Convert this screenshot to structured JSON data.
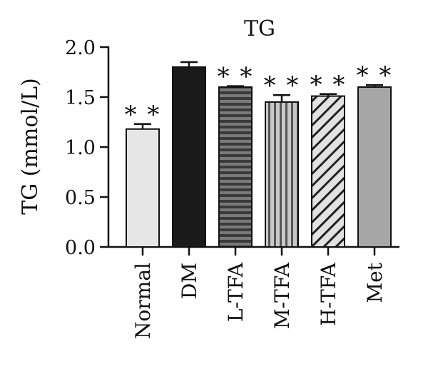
{
  "chart_data": {
    "type": "bar",
    "title": "TG",
    "xlabel": "",
    "ylabel": "TG (mmol/L)",
    "ylim": [
      0,
      2.0
    ],
    "yticks": [
      "0.0",
      "0.5",
      "1.0",
      "1.5",
      "2.0"
    ],
    "categories": [
      "Normal",
      "DM",
      "L-TFA",
      "M-TFA",
      "H-TFA",
      "Met"
    ],
    "values": [
      1.18,
      1.8,
      1.6,
      1.45,
      1.51,
      1.6
    ],
    "errors": [
      0.05,
      0.05,
      0.01,
      0.07,
      0.02,
      0.02
    ],
    "significance": [
      "* *",
      "",
      "* *",
      "* *",
      "* *",
      "* *"
    ],
    "fills": [
      "light-gray",
      "black",
      "horizontal-stripes",
      "vertical-stripes",
      "diagonal-hatch",
      "gray"
    ],
    "colors": {
      "light_gray": "#e6e6e6",
      "black": "#1a1a1a",
      "stripe_dark": "#3a3a3a",
      "stripe_mid": "#7a7a7a",
      "hatch_bg": "#e2e2e2",
      "gray": "#a6a6a6",
      "axis": "#111111"
    },
    "grid": false,
    "legend": "none"
  }
}
